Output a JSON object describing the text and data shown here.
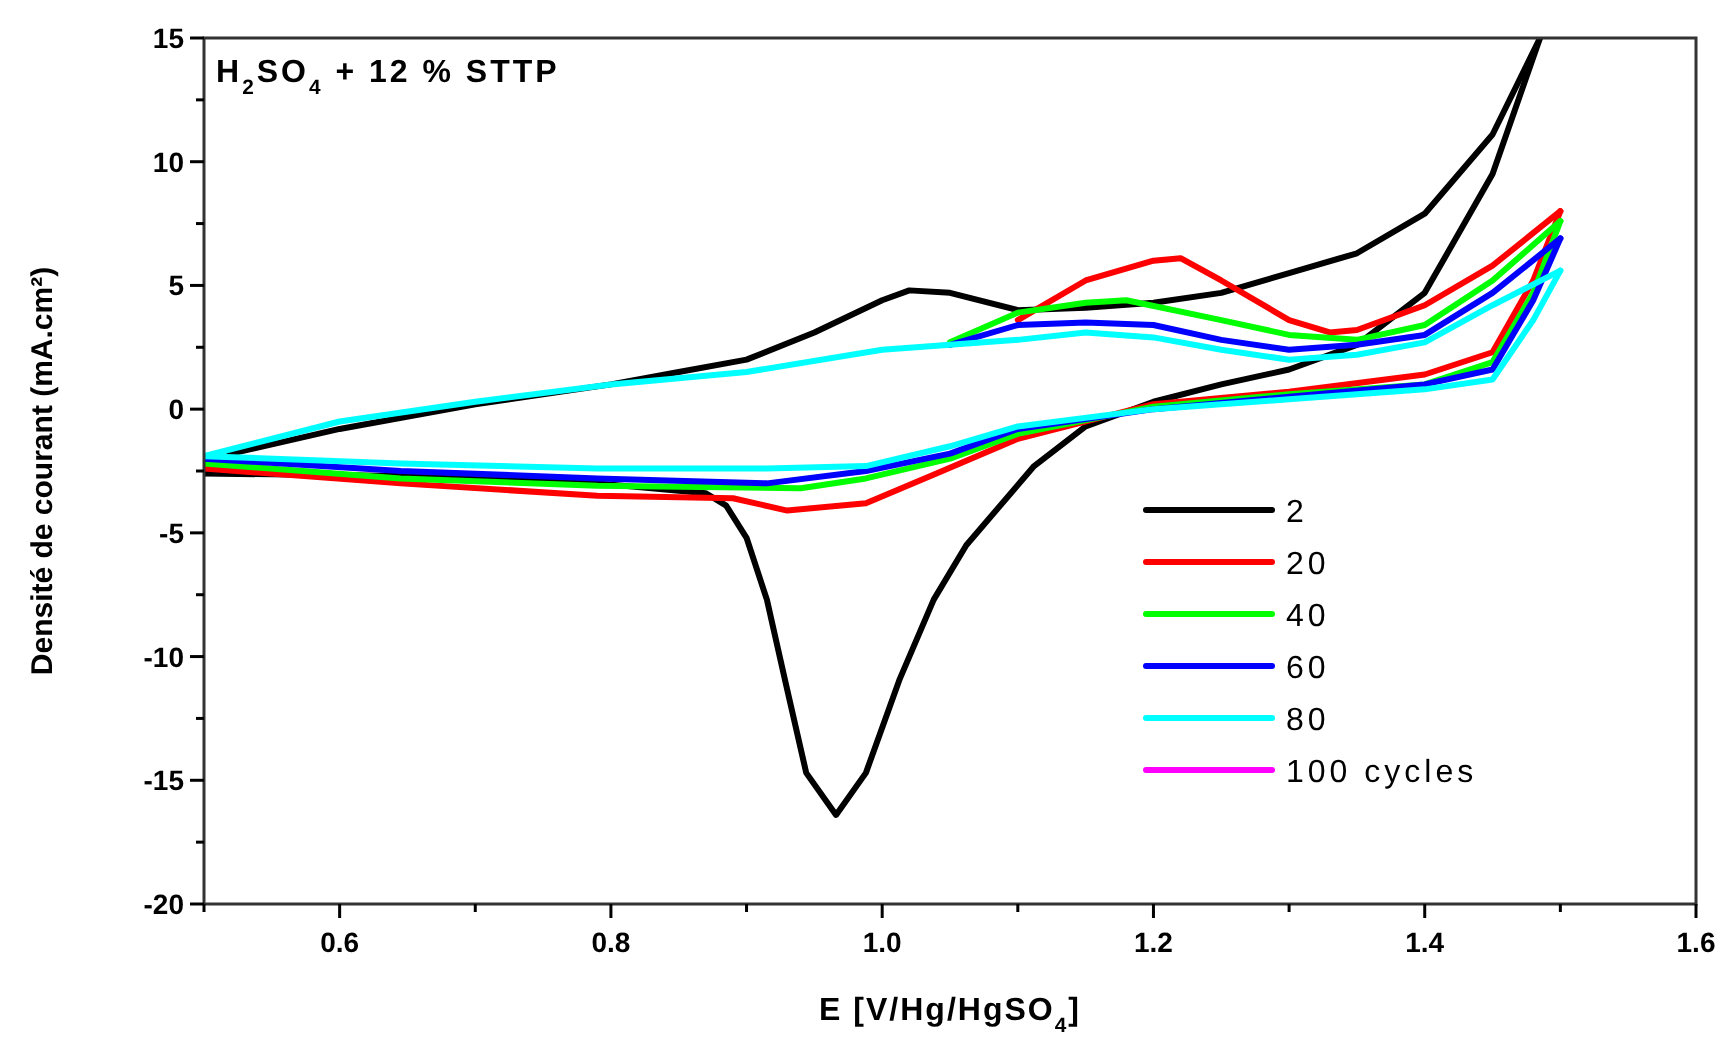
{
  "chart_data": {
    "type": "line",
    "title": "H$_{2}$SO$_{4}$ + 12 % STTP",
    "xlabel": "E [V/Hg/HgSO$_{4}$]",
    "ylabel": "Densité de courant (mA.cm²)",
    "xlim": [
      0.5,
      1.6
    ],
    "ylim": [
      -20,
      15
    ],
    "xticks": [
      {
        "value": 0.5,
        "label": null
      },
      {
        "value": 0.6,
        "label": "0.6"
      },
      {
        "value": 0.7,
        "label": null
      },
      {
        "value": 0.8,
        "label": "0.8"
      },
      {
        "value": 0.9,
        "label": null
      },
      {
        "value": 1,
        "label": "1.0"
      },
      {
        "value": 1.1,
        "label": null
      },
      {
        "value": 1.2,
        "label": "1.2"
      },
      {
        "value": 1.3,
        "label": null
      },
      {
        "value": 1.4,
        "label": "1.4"
      },
      {
        "value": 1.5,
        "label": null
      },
      {
        "value": 1.6,
        "label": "1.6"
      }
    ],
    "yticks": [
      -20,
      {
        "value": -17.5,
        "label": null
      },
      -15,
      {
        "value": -12.5,
        "label": null
      },
      -10,
      {
        "value": -7.5,
        "label": null
      },
      -5,
      {
        "value": -2.5,
        "label": null
      },
      0,
      {
        "value": 2.5,
        "label": null
      },
      5,
      {
        "value": 7.5,
        "label": null
      },
      10,
      {
        "value": 12.5,
        "label": null
      },
      15
    ],
    "legend": "right",
    "grid": false,
    "line_style": "solid",
    "marker": "none",
    "series": [
      {
        "name": "2",
        "color": "#000000",
        "x": [
          0.5,
          0.52,
          0.6,
          0.7,
          0.8,
          0.85,
          0.9,
          0.95,
          1.0,
          1.02,
          1.05,
          1.1,
          1.15,
          1.2,
          1.25,
          1.3,
          1.35,
          1.4,
          1.45,
          1.485
        ],
        "values": [
          -2.6,
          -1.8,
          -0.8,
          0.2,
          1.0,
          1.5,
          2.0,
          3.1,
          4.4,
          4.8,
          4.7,
          4.0,
          4.1,
          4.3,
          4.7,
          5.5,
          6.3,
          7.9,
          11.1,
          15
        ]
      },
      {
        "color": "#000000",
        "x": [
          0.5,
          0.645,
          0.79,
          0.87,
          0.885,
          0.9,
          0.915,
          0.929,
          0.944,
          0.966,
          0.988,
          1.013,
          1.038,
          1.062,
          1.112,
          1.15,
          1.2,
          1.25,
          1.3,
          1.35,
          1.4,
          1.45,
          1.485
        ],
        "values": [
          -2.6,
          -2.7,
          -3.0,
          -3.4,
          -3.9,
          -5.2,
          -7.7,
          -11.1,
          -14.7,
          -16.4,
          -14.7,
          -10.9,
          -7.7,
          -5.5,
          -2.3,
          -0.7,
          0.3,
          1.0,
          1.6,
          2.6,
          4.7,
          9.5,
          15
        ]
      },
      {
        "name": "20",
        "color": "#ff0000",
        "x": [
          1.1,
          1.15,
          1.2,
          1.22,
          1.25,
          1.3,
          1.33,
          1.35,
          1.4,
          1.45,
          1.5
        ],
        "values": [
          3.6,
          5.2,
          6.0,
          6.1,
          5.2,
          3.6,
          3.1,
          3.2,
          4.2,
          5.8,
          8.0
        ]
      },
      {
        "color": "#ff0000",
        "x": [
          0.5,
          0.645,
          0.79,
          0.89,
          0.93,
          0.988,
          1.04,
          1.1,
          1.2,
          1.3,
          1.4,
          1.45,
          1.48,
          1.5
        ],
        "values": [
          -2.4,
          -3.0,
          -3.5,
          -3.6,
          -4.1,
          -3.8,
          -2.6,
          -1.2,
          0.2,
          0.7,
          1.4,
          2.3,
          5.2,
          8.0
        ]
      },
      {
        "name": "40",
        "color": "#00ff00",
        "x": [
          1.05,
          1.1,
          1.15,
          1.18,
          1.25,
          1.3,
          1.35,
          1.4,
          1.45,
          1.5
        ],
        "values": [
          2.7,
          3.9,
          4.3,
          4.4,
          3.6,
          3.0,
          2.8,
          3.4,
          5.2,
          7.6
        ]
      },
      {
        "color": "#00ff00",
        "x": [
          0.5,
          0.645,
          0.79,
          0.94,
          0.988,
          1.05,
          1.1,
          1.2,
          1.3,
          1.4,
          1.45,
          1.48,
          1.5
        ],
        "values": [
          -2.2,
          -2.8,
          -3.1,
          -3.2,
          -2.8,
          -2.0,
          -1.0,
          0.1,
          0.6,
          1.0,
          1.9,
          4.7,
          7.6
        ]
      },
      {
        "name": "60",
        "color": "#0000ff",
        "x": [
          1.05,
          1.1,
          1.15,
          1.2,
          1.25,
          1.3,
          1.35,
          1.4,
          1.45,
          1.5
        ],
        "values": [
          2.6,
          3.4,
          3.5,
          3.4,
          2.8,
          2.4,
          2.6,
          3.0,
          4.7,
          6.9
        ]
      },
      {
        "color": "#0000ff",
        "x": [
          0.5,
          0.645,
          0.79,
          0.915,
          0.988,
          1.05,
          1.1,
          1.2,
          1.3,
          1.4,
          1.45,
          1.48,
          1.5
        ],
        "values": [
          -2.0,
          -2.5,
          -2.8,
          -3.0,
          -2.5,
          -1.8,
          -0.8,
          0,
          0.5,
          1.0,
          1.6,
          4.4,
          6.9
        ]
      },
      {
        "name": "80",
        "color": "#00ffff",
        "x": [
          0.5,
          0.6,
          0.7,
          0.8,
          0.9,
          1.0,
          1.05,
          1.1,
          1.15,
          1.2,
          1.25,
          1.3,
          1.35,
          1.4,
          1.45,
          1.5
        ],
        "values": [
          -1.9,
          -0.5,
          0.3,
          1.0,
          1.5,
          2.4,
          2.6,
          2.8,
          3.1,
          2.9,
          2.4,
          2.0,
          2.2,
          2.7,
          4.2,
          5.6
        ]
      },
      {
        "color": "#00ffff",
        "x": [
          0.5,
          0.645,
          0.79,
          0.915,
          0.988,
          1.05,
          1.1,
          1.2,
          1.3,
          1.4,
          1.45,
          1.48,
          1.5
        ],
        "values": [
          -1.9,
          -2.2,
          -2.4,
          -2.4,
          -2.3,
          -1.5,
          -0.7,
          0,
          0.4,
          0.8,
          1.2,
          3.6,
          5.6
        ]
      },
      {
        "name": "100 cycles",
        "color": "#ff00ff"
      }
    ]
  }
}
